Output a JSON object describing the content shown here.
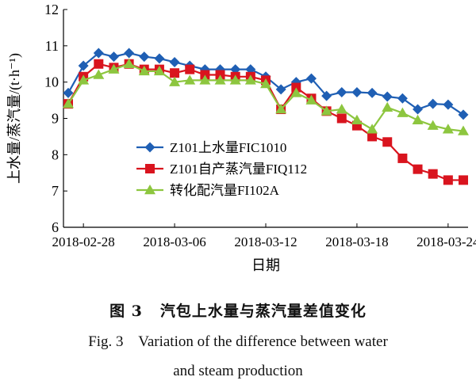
{
  "chart_data": {
    "type": "line",
    "x": [
      "2018-02-27",
      "2018-02-28",
      "2018-03-01",
      "2018-03-02",
      "2018-03-03",
      "2018-03-04",
      "2018-03-05",
      "2018-03-06",
      "2018-03-07",
      "2018-03-08",
      "2018-03-09",
      "2018-03-10",
      "2018-03-11",
      "2018-03-12",
      "2018-03-13",
      "2018-03-14",
      "2018-03-15",
      "2018-03-16",
      "2018-03-17",
      "2018-03-18",
      "2018-03-19",
      "2018-03-20",
      "2018-03-21",
      "2018-03-22",
      "2018-03-23",
      "2018-03-24",
      "2018-03-25"
    ],
    "xticks": [
      "2018-02-28",
      "2018-03-06",
      "2018-03-12",
      "2018-03-18",
      "2018-03-24"
    ],
    "yticks": [
      6,
      7,
      8,
      9,
      10,
      11,
      12
    ],
    "ylim": [
      6,
      12
    ],
    "xlabel": "日期",
    "ylabel": "上水量/蒸汽量/(t·h⁻¹)",
    "legend_position": "center-left",
    "series": [
      {
        "name": "Z101上水量FIC1010",
        "color": "#1f5fb4",
        "marker": "diamond",
        "values": [
          9.7,
          10.45,
          10.8,
          10.7,
          10.8,
          10.7,
          10.65,
          10.55,
          10.45,
          10.35,
          10.35,
          10.35,
          10.35,
          10.15,
          9.8,
          10.0,
          10.1,
          9.62,
          9.72,
          9.72,
          9.7,
          9.6,
          9.55,
          9.25,
          9.4,
          9.38,
          9.1
        ]
      },
      {
        "name": "Z101自产蒸汽量FIQ112",
        "color": "#d9141e",
        "marker": "square",
        "values": [
          9.4,
          10.15,
          10.5,
          10.4,
          10.5,
          10.35,
          10.35,
          10.25,
          10.35,
          10.2,
          10.2,
          10.15,
          10.15,
          10.05,
          9.25,
          9.85,
          9.55,
          9.2,
          9.0,
          8.8,
          8.5,
          8.35,
          7.9,
          7.6,
          7.47,
          7.3,
          7.3
        ]
      },
      {
        "name": "转化配汽量FI102A",
        "color": "#8dc63f",
        "marker": "triangle",
        "values": [
          9.4,
          10.05,
          10.2,
          10.35,
          10.5,
          10.3,
          10.3,
          10.0,
          10.05,
          10.05,
          10.05,
          10.05,
          10.05,
          9.95,
          9.25,
          9.7,
          9.5,
          9.2,
          9.25,
          8.95,
          8.7,
          9.3,
          9.15,
          8.95,
          8.8,
          8.7,
          8.65
        ]
      }
    ]
  },
  "caption": {
    "zh_label": "图 3",
    "zh_text": "汽包上水量与蒸汽量差值变化",
    "en_line1": "Fig. 3    Variation of the difference between water",
    "en_line2": "and steam production"
  }
}
